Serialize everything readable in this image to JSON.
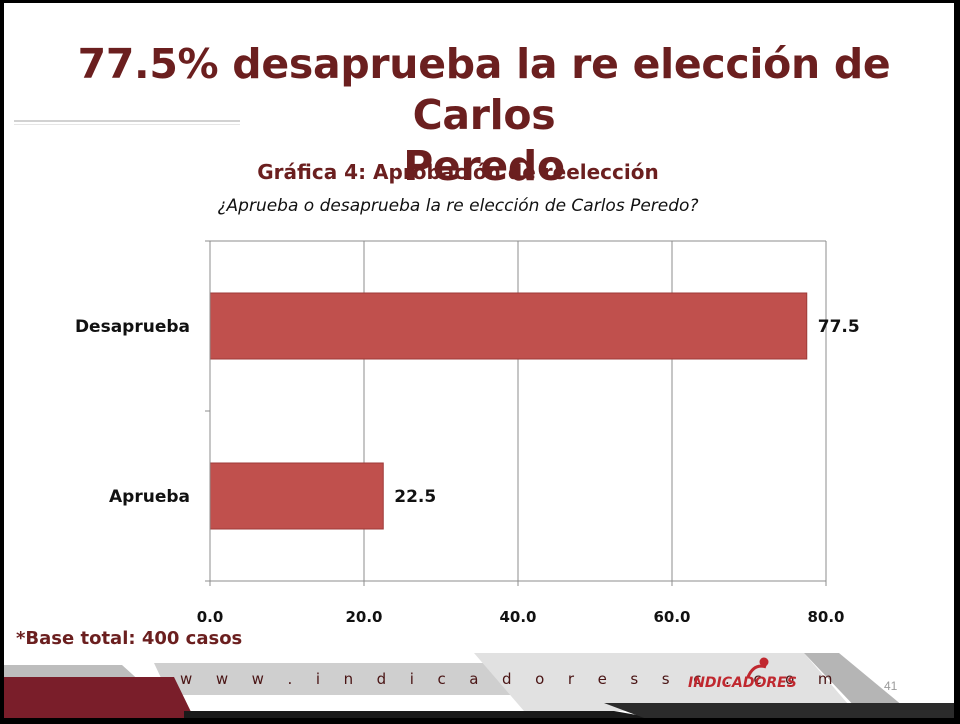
{
  "slide": {
    "title_line1": "77.5% desaprueba la re elección de Carlos",
    "title_line2": "Peredo",
    "base_note": "*Base total: 400 casos",
    "website": "w w w . i n d i c a d o r e s s c . c o m",
    "logo_text": "INDICADORES",
    "page_number": "41"
  },
  "colors": {
    "title": "#6b1f1f",
    "bar": "#c0504d",
    "bar_edge": "#9e3a38",
    "grid": "#8c8c8c",
    "footer_maroon": "#7a1e2a",
    "footer_gray": "#bdbdbd"
  },
  "chart_data": {
    "type": "bar",
    "orientation": "horizontal",
    "title": "Gráfica 4: Aprobación de reelección",
    "subtitle": "¿Aprueba o desaprueba la re elección de Carlos Peredo?",
    "categories": [
      "Desaprueba",
      "Aprueba"
    ],
    "values": [
      77.5,
      22.5
    ],
    "value_labels": [
      "77.5",
      "22.5"
    ],
    "xlim": [
      0,
      80
    ],
    "xticks": [
      0,
      20,
      40,
      60,
      80
    ],
    "xtick_labels": [
      "0.0",
      "20.0",
      "40.0",
      "60.0",
      "80.0"
    ],
    "grid": true,
    "legend": "none"
  }
}
